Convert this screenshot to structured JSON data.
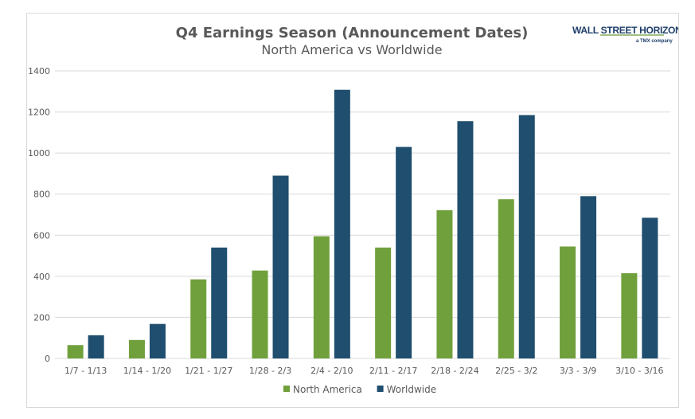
{
  "logo": {
    "name": "WALL STREET HORIZON",
    "tagline": "a TMX company",
    "accent_color": "#6a9a3a"
  },
  "chart_data": {
    "type": "bar",
    "title": "Q4 Earnings Season (Announcement Dates)",
    "subtitle": "North America vs Worldwide",
    "xlabel": "",
    "ylabel": "",
    "ylim": [
      0,
      1400
    ],
    "yticks": [
      0,
      200,
      400,
      600,
      800,
      1000,
      1200,
      1400
    ],
    "grid": true,
    "legend_position": "bottom",
    "categories": [
      "1/7 - 1/13",
      "1/14 - 1/20",
      "1/21 - 1/27",
      "1/28 - 2/3",
      "2/4 - 2/10",
      "2/11 - 2/17",
      "2/18 - 2/24",
      "2/25 - 3/2",
      "3/3 - 3/9",
      "3/10 - 3/16"
    ],
    "series": [
      {
        "name": "North America",
        "color": "#70a03c",
        "values": [
          65,
          90,
          385,
          428,
          595,
          540,
          722,
          775,
          545,
          415
        ]
      },
      {
        "name": "Worldwide",
        "color": "#1f4e6e",
        "values": [
          113,
          168,
          540,
          890,
          1308,
          1030,
          1155,
          1185,
          790,
          685
        ]
      }
    ]
  }
}
